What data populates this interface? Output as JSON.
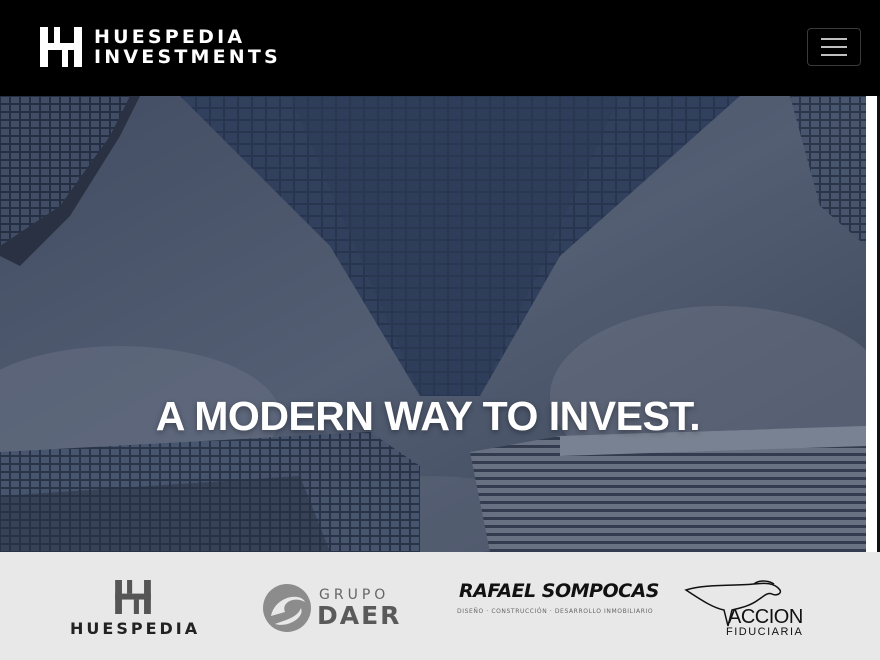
{
  "header": {
    "brand_line1": "HUESPEDIA",
    "brand_line2": "INVESTMENTS",
    "logo_icon": "hh-monogram-icon",
    "menu_icon": "hamburger-menu-icon"
  },
  "hero": {
    "title": "A MODERN WAY TO INVEST.",
    "background": "skyscrapers-looking-up-photo"
  },
  "partners": [
    {
      "name": "HUESPEDIA"
    },
    {
      "line1": "GRUPO",
      "line2": "DAER"
    },
    {
      "line1": "RAFAEL SOMPOCAS",
      "line2": "DISEÑO · CONSTRUCCIÓN · DESARROLLO INMOBILIARIO"
    },
    {
      "line1": "ACCION",
      "line2": "FIDUCIARIA"
    }
  ],
  "colors": {
    "header_bg": "#000000",
    "partners_bg": "#e8e8e8",
    "hero_overlay": "#2a3346"
  }
}
